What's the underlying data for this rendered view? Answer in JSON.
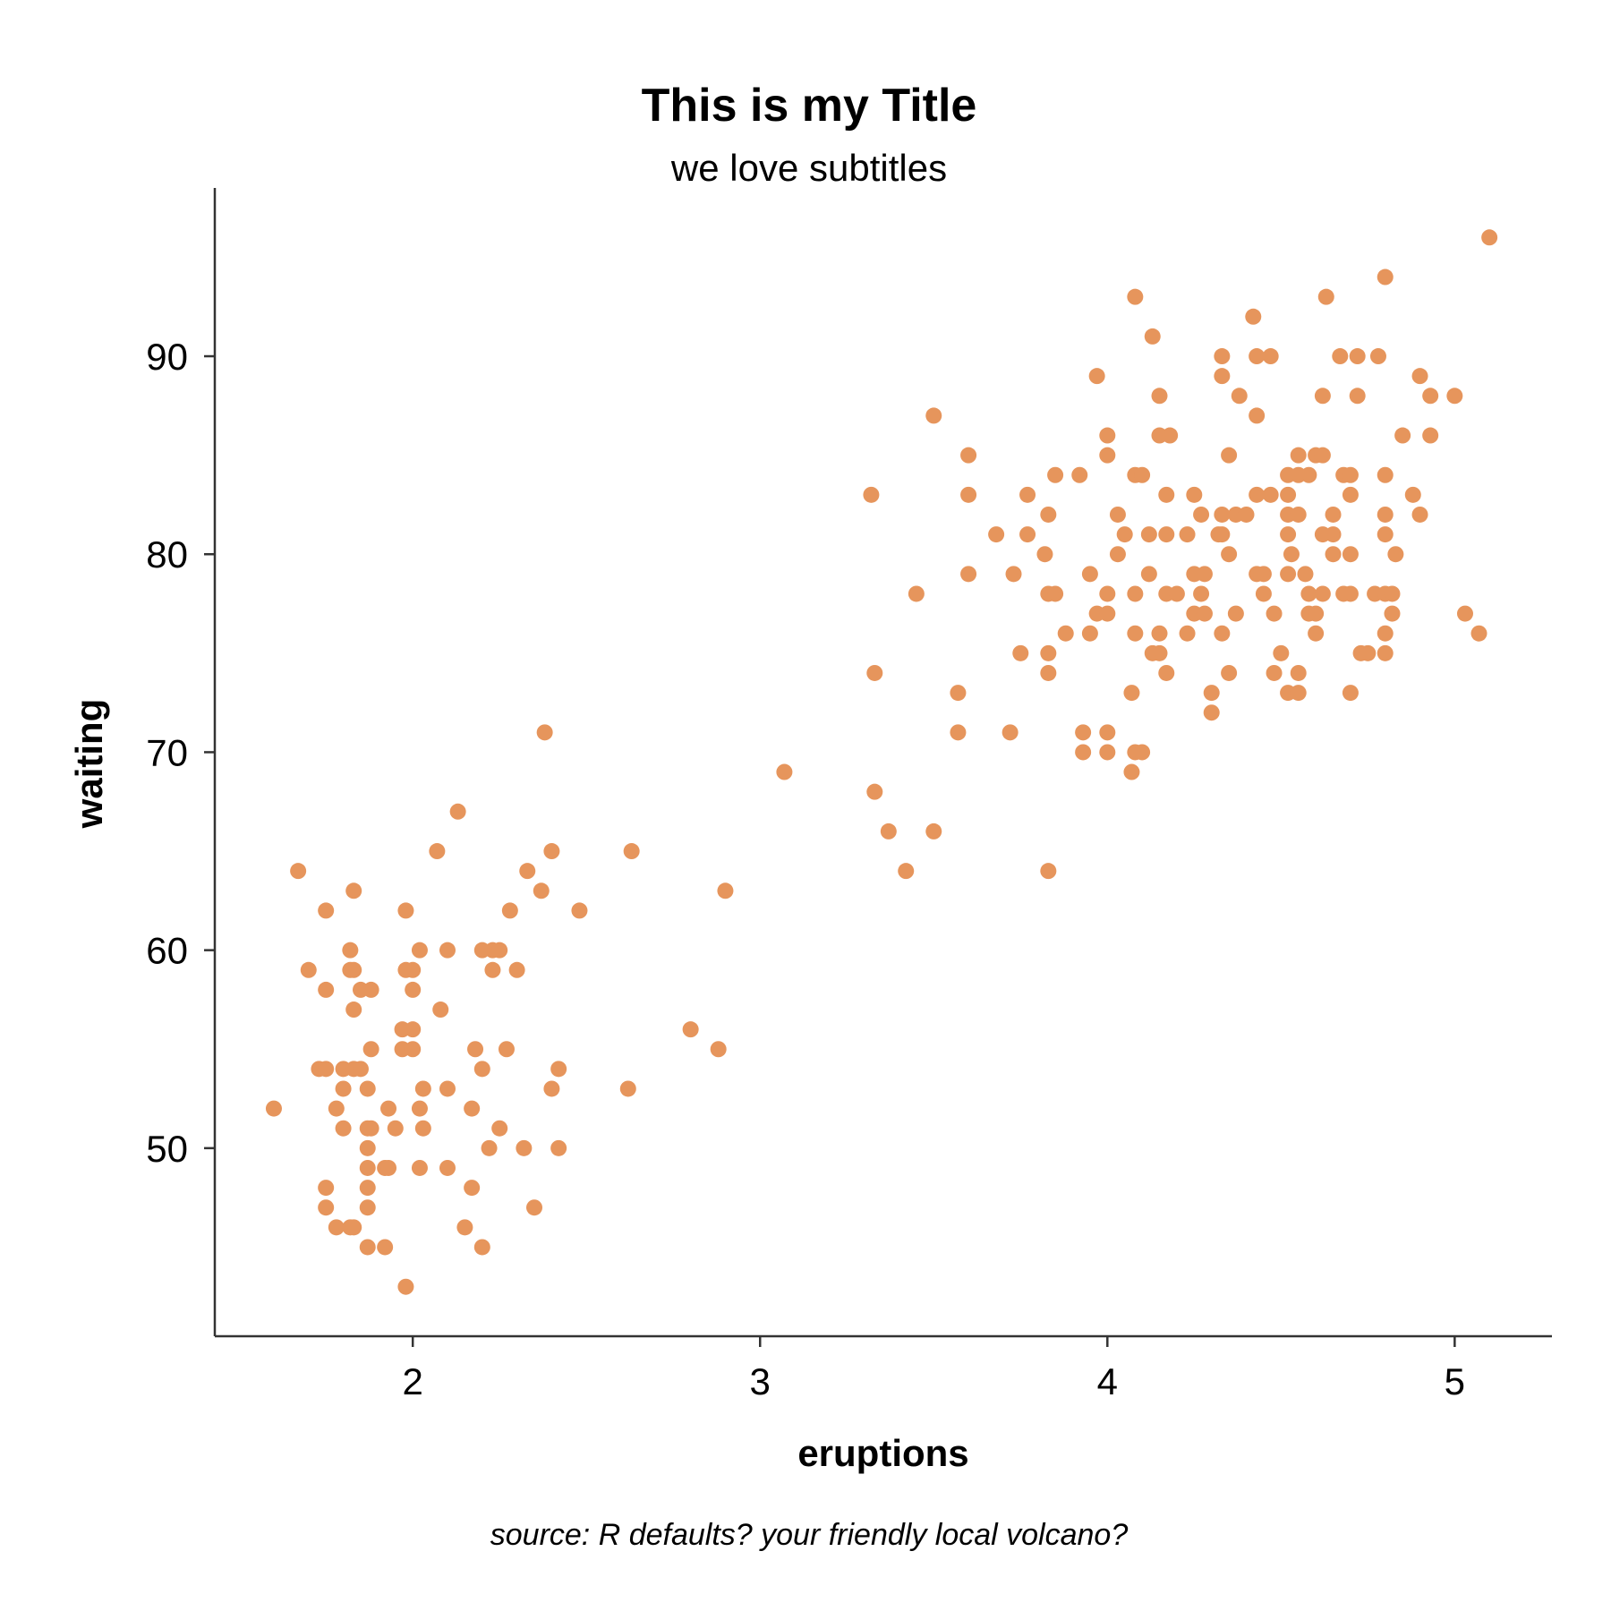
{
  "chart_data": {
    "type": "scatter",
    "title": "This is my Title",
    "subtitle": "we love subtitles",
    "xlabel": "eruptions",
    "ylabel": "waiting",
    "caption": "source: R defaults? your friendly local volcano?",
    "xlim": [
      1.43,
      5.28
    ],
    "ylim": [
      40.5,
      98.5
    ],
    "xticks": [
      2,
      3,
      4,
      5
    ],
    "yticks": [
      50,
      60,
      70,
      80,
      90
    ],
    "grid": false,
    "legend": "none",
    "point_color": "#E6955C",
    "points": [
      [
        1.6,
        52
      ],
      [
        1.67,
        64
      ],
      [
        1.7,
        59
      ],
      [
        1.73,
        54
      ],
      [
        1.75,
        54
      ],
      [
        1.75,
        62
      ],
      [
        1.75,
        58
      ],
      [
        1.75,
        48
      ],
      [
        1.75,
        47
      ],
      [
        1.78,
        52
      ],
      [
        1.78,
        46
      ],
      [
        1.8,
        54
      ],
      [
        1.8,
        53
      ],
      [
        1.8,
        51
      ],
      [
        1.82,
        60
      ],
      [
        1.82,
        59
      ],
      [
        1.82,
        46
      ],
      [
        1.83,
        63
      ],
      [
        1.83,
        59
      ],
      [
        1.83,
        57
      ],
      [
        1.83,
        54
      ],
      [
        1.83,
        46
      ],
      [
        1.85,
        58
      ],
      [
        1.85,
        54
      ],
      [
        1.87,
        53
      ],
      [
        1.87,
        51
      ],
      [
        1.87,
        50
      ],
      [
        1.87,
        49
      ],
      [
        1.87,
        48
      ],
      [
        1.87,
        47
      ],
      [
        1.87,
        45
      ],
      [
        1.88,
        58
      ],
      [
        1.88,
        55
      ],
      [
        1.88,
        51
      ],
      [
        1.92,
        49
      ],
      [
        1.92,
        45
      ],
      [
        1.93,
        52
      ],
      [
        1.93,
        49
      ],
      [
        1.95,
        51
      ],
      [
        1.97,
        56
      ],
      [
        1.97,
        55
      ],
      [
        1.98,
        62
      ],
      [
        1.98,
        59
      ],
      [
        1.98,
        43
      ],
      [
        2.0,
        59
      ],
      [
        2.0,
        58
      ],
      [
        2.0,
        56
      ],
      [
        2.0,
        55
      ],
      [
        2.02,
        60
      ],
      [
        2.02,
        52
      ],
      [
        2.02,
        49
      ],
      [
        2.03,
        53
      ],
      [
        2.03,
        51
      ],
      [
        2.07,
        65
      ],
      [
        2.08,
        57
      ],
      [
        2.1,
        60
      ],
      [
        2.1,
        53
      ],
      [
        2.1,
        49
      ],
      [
        2.13,
        67
      ],
      [
        2.17,
        52
      ],
      [
        2.17,
        48
      ],
      [
        2.15,
        46
      ],
      [
        2.18,
        55
      ],
      [
        2.2,
        60
      ],
      [
        2.2,
        54
      ],
      [
        2.2,
        45
      ],
      [
        2.22,
        50
      ],
      [
        2.23,
        60
      ],
      [
        2.23,
        59
      ],
      [
        2.25,
        60
      ],
      [
        2.25,
        51
      ],
      [
        2.27,
        55
      ],
      [
        2.28,
        62
      ],
      [
        2.3,
        59
      ],
      [
        2.32,
        50
      ],
      [
        2.33,
        64
      ],
      [
        2.35,
        47
      ],
      [
        2.37,
        63
      ],
      [
        2.38,
        71
      ],
      [
        2.4,
        65
      ],
      [
        2.4,
        53
      ],
      [
        2.42,
        54
      ],
      [
        2.42,
        50
      ],
      [
        2.48,
        62
      ],
      [
        2.62,
        53
      ],
      [
        2.63,
        65
      ],
      [
        2.8,
        56
      ],
      [
        2.88,
        55
      ],
      [
        2.9,
        63
      ],
      [
        3.07,
        69
      ],
      [
        3.32,
        83
      ],
      [
        3.33,
        74
      ],
      [
        3.33,
        68
      ],
      [
        3.37,
        66
      ],
      [
        3.42,
        64
      ],
      [
        3.45,
        78
      ],
      [
        3.5,
        87
      ],
      [
        3.5,
        66
      ],
      [
        3.57,
        73
      ],
      [
        3.57,
        71
      ],
      [
        3.6,
        85
      ],
      [
        3.6,
        83
      ],
      [
        3.6,
        79
      ],
      [
        3.68,
        81
      ],
      [
        3.72,
        71
      ],
      [
        3.73,
        79
      ],
      [
        3.75,
        75
      ],
      [
        3.77,
        83
      ],
      [
        3.77,
        81
      ],
      [
        3.82,
        80
      ],
      [
        3.83,
        82
      ],
      [
        3.83,
        78
      ],
      [
        3.83,
        75
      ],
      [
        3.83,
        74
      ],
      [
        3.83,
        64
      ],
      [
        3.85,
        84
      ],
      [
        3.85,
        78
      ],
      [
        3.88,
        76
      ],
      [
        3.92,
        84
      ],
      [
        3.93,
        71
      ],
      [
        3.93,
        70
      ],
      [
        3.95,
        79
      ],
      [
        3.95,
        76
      ],
      [
        3.97,
        89
      ],
      [
        3.97,
        77
      ],
      [
        4.0,
        86
      ],
      [
        4.0,
        85
      ],
      [
        4.0,
        78
      ],
      [
        4.0,
        77
      ],
      [
        4.0,
        71
      ],
      [
        4.0,
        70
      ],
      [
        4.03,
        82
      ],
      [
        4.03,
        80
      ],
      [
        4.05,
        81
      ],
      [
        4.07,
        73
      ],
      [
        4.07,
        69
      ],
      [
        4.08,
        93
      ],
      [
        4.08,
        84
      ],
      [
        4.08,
        78
      ],
      [
        4.08,
        76
      ],
      [
        4.08,
        70
      ],
      [
        4.1,
        84
      ],
      [
        4.1,
        70
      ],
      [
        4.12,
        81
      ],
      [
        4.12,
        79
      ],
      [
        4.13,
        91
      ],
      [
        4.13,
        75
      ],
      [
        4.15,
        88
      ],
      [
        4.15,
        86
      ],
      [
        4.15,
        76
      ],
      [
        4.15,
        75
      ],
      [
        4.17,
        83
      ],
      [
        4.17,
        81
      ],
      [
        4.17,
        78
      ],
      [
        4.17,
        74
      ],
      [
        4.18,
        86
      ],
      [
        4.2,
        78
      ],
      [
        4.23,
        81
      ],
      [
        4.23,
        76
      ],
      [
        4.25,
        83
      ],
      [
        4.25,
        79
      ],
      [
        4.25,
        77
      ],
      [
        4.27,
        82
      ],
      [
        4.27,
        78
      ],
      [
        4.28,
        79
      ],
      [
        4.28,
        77
      ],
      [
        4.3,
        73
      ],
      [
        4.3,
        72
      ],
      [
        4.32,
        81
      ],
      [
        4.33,
        90
      ],
      [
        4.33,
        89
      ],
      [
        4.33,
        82
      ],
      [
        4.33,
        81
      ],
      [
        4.33,
        76
      ],
      [
        4.35,
        85
      ],
      [
        4.35,
        80
      ],
      [
        4.35,
        74
      ],
      [
        4.37,
        82
      ],
      [
        4.37,
        77
      ],
      [
        4.38,
        88
      ],
      [
        4.4,
        82
      ],
      [
        4.42,
        92
      ],
      [
        4.43,
        90
      ],
      [
        4.43,
        87
      ],
      [
        4.43,
        83
      ],
      [
        4.43,
        79
      ],
      [
        4.45,
        79
      ],
      [
        4.45,
        78
      ],
      [
        4.47,
        90
      ],
      [
        4.47,
        83
      ],
      [
        4.48,
        77
      ],
      [
        4.48,
        74
      ],
      [
        4.5,
        75
      ],
      [
        4.52,
        84
      ],
      [
        4.52,
        83
      ],
      [
        4.52,
        82
      ],
      [
        4.52,
        81
      ],
      [
        4.52,
        79
      ],
      [
        4.52,
        73
      ],
      [
        4.53,
        80
      ],
      [
        4.55,
        85
      ],
      [
        4.55,
        84
      ],
      [
        4.55,
        82
      ],
      [
        4.55,
        74
      ],
      [
        4.55,
        73
      ],
      [
        4.57,
        79
      ],
      [
        4.58,
        84
      ],
      [
        4.58,
        78
      ],
      [
        4.58,
        77
      ],
      [
        4.6,
        85
      ],
      [
        4.6,
        77
      ],
      [
        4.6,
        76
      ],
      [
        4.62,
        88
      ],
      [
        4.62,
        85
      ],
      [
        4.62,
        81
      ],
      [
        4.62,
        78
      ],
      [
        4.63,
        93
      ],
      [
        4.65,
        82
      ],
      [
        4.65,
        81
      ],
      [
        4.65,
        80
      ],
      [
        4.67,
        90
      ],
      [
        4.68,
        84
      ],
      [
        4.68,
        78
      ],
      [
        4.7,
        84
      ],
      [
        4.7,
        83
      ],
      [
        4.7,
        80
      ],
      [
        4.7,
        78
      ],
      [
        4.7,
        73
      ],
      [
        4.72,
        88
      ],
      [
        4.72,
        90
      ],
      [
        4.73,
        75
      ],
      [
        4.75,
        75
      ],
      [
        4.77,
        78
      ],
      [
        4.78,
        90
      ],
      [
        4.8,
        94
      ],
      [
        4.8,
        84
      ],
      [
        4.8,
        82
      ],
      [
        4.8,
        81
      ],
      [
        4.8,
        78
      ],
      [
        4.8,
        76
      ],
      [
        4.8,
        75
      ],
      [
        4.82,
        78
      ],
      [
        4.82,
        77
      ],
      [
        4.83,
        80
      ],
      [
        4.85,
        86
      ],
      [
        4.88,
        83
      ],
      [
        4.9,
        89
      ],
      [
        4.9,
        82
      ],
      [
        4.93,
        88
      ],
      [
        4.93,
        86
      ],
      [
        5.0,
        88
      ],
      [
        5.03,
        77
      ],
      [
        5.07,
        76
      ],
      [
        5.1,
        96
      ]
    ]
  }
}
